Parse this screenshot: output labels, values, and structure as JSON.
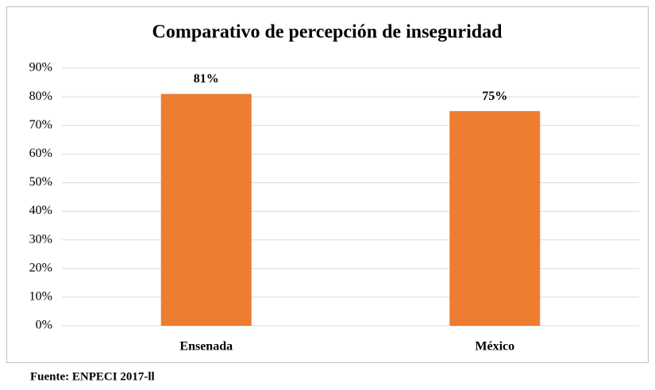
{
  "chart_data": {
    "type": "bar",
    "title": "Comparativo  de percepción de inseguridad",
    "categories": [
      "Ensenada",
      "México"
    ],
    "values": [
      81,
      75
    ],
    "value_labels": [
      "81%",
      "75%"
    ],
    "color": "#ed7d31",
    "ylim": [
      0,
      90
    ],
    "yticks": [
      {
        "value": 0,
        "label": "0%"
      },
      {
        "value": 10,
        "label": "10%"
      },
      {
        "value": 20,
        "label": "20%"
      },
      {
        "value": 30,
        "label": "30%"
      },
      {
        "value": 40,
        "label": "40%"
      },
      {
        "value": 50,
        "label": "50%"
      },
      {
        "value": 60,
        "label": "60%"
      },
      {
        "value": 70,
        "label": "70%"
      },
      {
        "value": 80,
        "label": "80%"
      },
      {
        "value": 90,
        "label": "90%"
      }
    ],
    "grid": true,
    "note": "Fuente: ENPECI 2017-ll"
  }
}
